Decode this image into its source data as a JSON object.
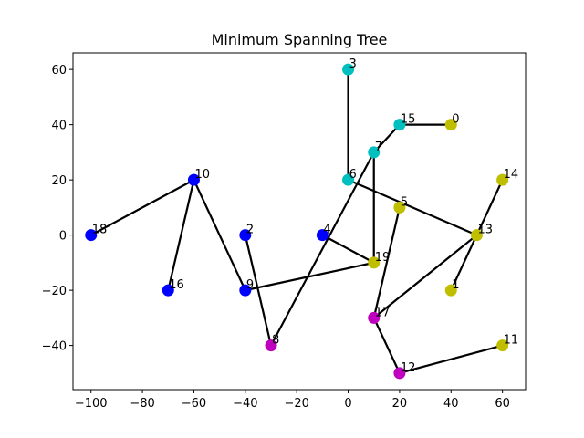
{
  "chart_data": {
    "type": "scatter",
    "title": "Minimum Spanning Tree",
    "xlabel": "",
    "ylabel": "",
    "xlim": [
      -107,
      69
    ],
    "ylim": [
      -56,
      66
    ],
    "x_ticks": [
      -100,
      -80,
      -60,
      -40,
      -20,
      0,
      20,
      40,
      60
    ],
    "y_ticks": [
      -40,
      -20,
      0,
      20,
      40,
      60
    ],
    "grid": false,
    "colors": {
      "blue": "#0000ff",
      "cyan": "#00bfbf",
      "yellow": "#bfbf00",
      "magenta": "#bf00bf",
      "edge": "#000000"
    },
    "nodes": [
      {
        "id": "0",
        "x": 40,
        "y": 40,
        "color": "yellow"
      },
      {
        "id": "1",
        "x": 40,
        "y": -20,
        "color": "yellow"
      },
      {
        "id": "2",
        "x": -40,
        "y": 0,
        "color": "blue"
      },
      {
        "id": "3",
        "x": 0,
        "y": 60,
        "color": "cyan"
      },
      {
        "id": "4",
        "x": -10,
        "y": 0,
        "color": "blue"
      },
      {
        "id": "5",
        "x": 20,
        "y": 10,
        "color": "yellow"
      },
      {
        "id": "6",
        "x": 0,
        "y": 20,
        "color": "cyan"
      },
      {
        "id": "7",
        "x": 10,
        "y": 30,
        "color": "cyan"
      },
      {
        "id": "8",
        "x": -30,
        "y": -40,
        "color": "magenta"
      },
      {
        "id": "9",
        "x": -40,
        "y": -20,
        "color": "blue"
      },
      {
        "id": "10",
        "x": -60,
        "y": 20,
        "color": "blue"
      },
      {
        "id": "11",
        "x": 60,
        "y": -40,
        "color": "yellow"
      },
      {
        "id": "12",
        "x": 20,
        "y": -50,
        "color": "magenta"
      },
      {
        "id": "13",
        "x": 50,
        "y": 0,
        "color": "yellow"
      },
      {
        "id": "14",
        "x": 60,
        "y": 20,
        "color": "yellow"
      },
      {
        "id": "15",
        "x": 20,
        "y": 40,
        "color": "cyan"
      },
      {
        "id": "16",
        "x": -70,
        "y": -20,
        "color": "blue"
      },
      {
        "id": "17",
        "x": 10,
        "y": -30,
        "color": "magenta"
      },
      {
        "id": "18",
        "x": -100,
        "y": 0,
        "color": "blue"
      },
      {
        "id": "19",
        "x": 10,
        "y": -10,
        "color": "yellow"
      }
    ],
    "edges": [
      [
        "18",
        "10"
      ],
      [
        "10",
        "16"
      ],
      [
        "10",
        "9"
      ],
      [
        "9",
        "19"
      ],
      [
        "2",
        "8"
      ],
      [
        "8",
        "7"
      ],
      [
        "7",
        "15"
      ],
      [
        "15",
        "0"
      ],
      [
        "7",
        "19"
      ],
      [
        "4",
        "19"
      ],
      [
        "3",
        "6"
      ],
      [
        "6",
        "13"
      ],
      [
        "13",
        "1"
      ],
      [
        "13",
        "14"
      ],
      [
        "13",
        "17"
      ],
      [
        "17",
        "5"
      ],
      [
        "17",
        "12"
      ],
      [
        "12",
        "11"
      ]
    ]
  }
}
